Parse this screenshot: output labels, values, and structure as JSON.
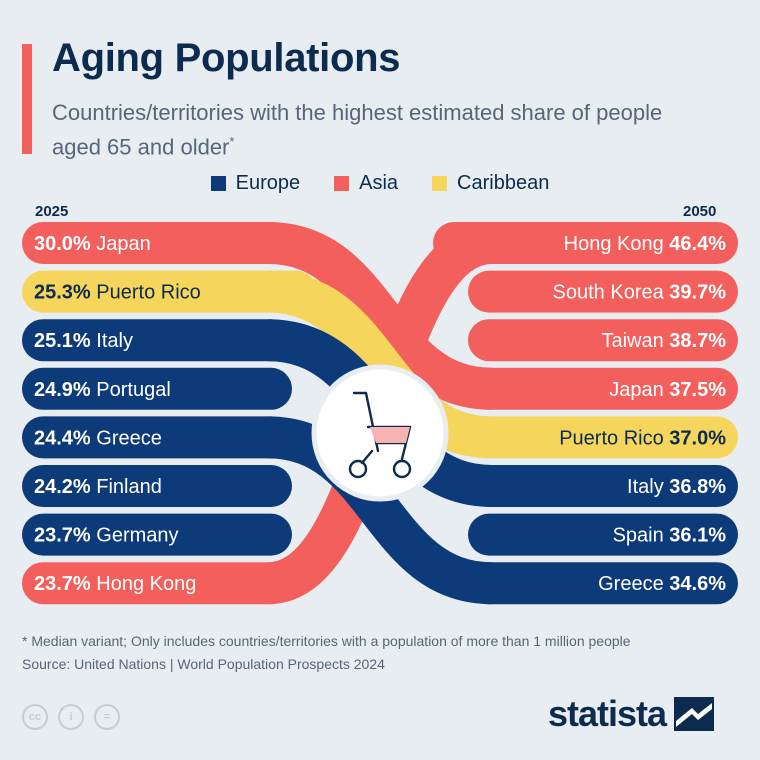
{
  "header": {
    "title": "Aging Populations",
    "subtitle": "Countries/territories with the highest estimated share of people aged 65 and older",
    "subtitle_mark": "*"
  },
  "legend": [
    {
      "label": "Europe",
      "color": "#0d3b7a"
    },
    {
      "label": "Asia",
      "color": "#f25f5c"
    },
    {
      "label": "Caribbean",
      "color": "#f6d55c"
    }
  ],
  "colors": {
    "Europe": "#0d3b7a",
    "Asia": "#f25f5c",
    "Caribbean": "#f6d55c",
    "background": "#e8edf2"
  },
  "chart_data": {
    "type": "bump",
    "left_year": "2025",
    "right_year": "2050",
    "left": [
      {
        "name": "Japan",
        "value": "30.0%",
        "region": "Asia"
      },
      {
        "name": "Puerto Rico",
        "value": "25.3%",
        "region": "Caribbean"
      },
      {
        "name": "Italy",
        "value": "25.1%",
        "region": "Europe"
      },
      {
        "name": "Portugal",
        "value": "24.9%",
        "region": "Europe"
      },
      {
        "name": "Greece",
        "value": "24.4%",
        "region": "Europe"
      },
      {
        "name": "Finland",
        "value": "24.2%",
        "region": "Europe"
      },
      {
        "name": "Germany",
        "value": "23.7%",
        "region": "Europe"
      },
      {
        "name": "Hong Kong",
        "value": "23.7%",
        "region": "Asia"
      }
    ],
    "right": [
      {
        "name": "Hong Kong",
        "value": "46.4%",
        "region": "Asia"
      },
      {
        "name": "South Korea",
        "value": "39.7%",
        "region": "Asia"
      },
      {
        "name": "Taiwan",
        "value": "38.7%",
        "region": "Asia"
      },
      {
        "name": "Japan",
        "value": "37.5%",
        "region": "Asia"
      },
      {
        "name": "Puerto Rico",
        "value": "37.0%",
        "region": "Caribbean"
      },
      {
        "name": "Italy",
        "value": "36.8%",
        "region": "Europe"
      },
      {
        "name": "Spain",
        "value": "36.1%",
        "region": "Europe"
      },
      {
        "name": "Greece",
        "value": "34.6%",
        "region": "Europe"
      }
    ],
    "links": [
      {
        "from": 7,
        "to": 0,
        "region": "Asia"
      },
      {
        "from": 0,
        "to": 3,
        "region": "Asia"
      },
      {
        "from": 1,
        "to": 4,
        "region": "Caribbean"
      },
      {
        "from": 2,
        "to": 5,
        "region": "Europe"
      },
      {
        "from": 4,
        "to": 7,
        "region": "Europe"
      }
    ]
  },
  "footer": {
    "footnote": "* Median variant; Only includes countries/territories with a population of more than 1 million people",
    "source": "Source: United Nations | World Population Prospects 2024",
    "license_icons": [
      "cc-icon",
      "by-icon",
      "nd-icon"
    ],
    "license_icon_text": [
      "cc",
      "i",
      "="
    ],
    "brand": "statista"
  }
}
